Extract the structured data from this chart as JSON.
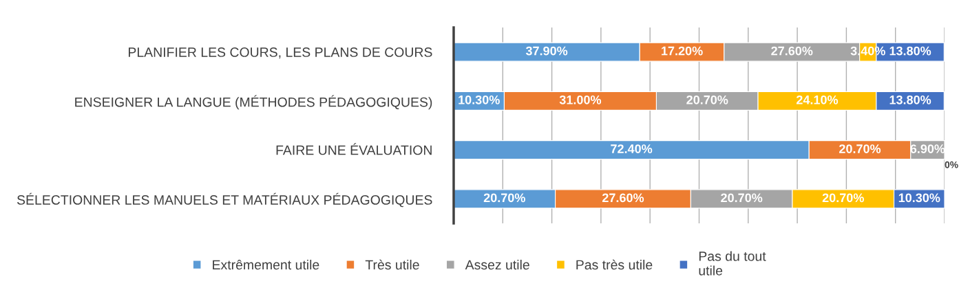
{
  "chart_data": {
    "type": "bar",
    "orientation": "horizontal",
    "stacked": true,
    "categories": [
      "PLANIFIER LES COURS, LES PLANS DE COURS",
      "ENSEIGNER LA LANGUE (MÉTHODES PÉDAGOGIQUES)",
      "FAIRE UNE ÉVALUATION",
      "SÉLECTIONNER LES MANUELS ET MATÉRIAUX PÉDAGOGIQUES"
    ],
    "series": [
      {
        "name": "Extrêmement utile",
        "color": "#5b9bd5",
        "values": [
          37.9,
          10.3,
          72.4,
          20.7
        ],
        "value_labels": [
          "37.90%",
          "10.30%",
          "72.40%",
          "20.70%"
        ]
      },
      {
        "name": "Très utile",
        "color": "#ed7d31",
        "values": [
          17.2,
          31.0,
          20.7,
          27.6
        ],
        "value_labels": [
          "17.20%",
          "31.00%",
          "20.70%",
          "27.60%"
        ]
      },
      {
        "name": "Assez utile",
        "color": "#a5a5a5",
        "values": [
          27.6,
          20.7,
          6.9,
          20.7
        ],
        "value_labels": [
          "27.60%",
          "20.70%",
          "6.90%",
          "20.70%"
        ]
      },
      {
        "name": "Pas très utile",
        "color": "#ffc000",
        "values": [
          3.4,
          24.1,
          0,
          20.7
        ],
        "value_labels": [
          "3.40%",
          "24.10%",
          "0%",
          "20.70%"
        ]
      },
      {
        "name": "Pas du tout\nutile",
        "color": "#4472c4",
        "values": [
          13.8,
          13.8,
          0,
          10.3
        ],
        "value_labels": [
          "13.80%",
          "13.80%",
          null,
          "10.30%"
        ]
      }
    ],
    "xlim": [
      0,
      100
    ],
    "xticks": [
      {
        "value": 0,
        "label": null
      },
      {
        "value": 10,
        "label": null
      },
      {
        "value": 20,
        "label": null
      },
      {
        "value": 30,
        "label": null
      },
      {
        "value": 40,
        "label": null
      },
      {
        "value": 50,
        "label": null
      },
      {
        "value": 60,
        "label": null
      },
      {
        "value": 70,
        "label": null
      },
      {
        "value": 80,
        "label": null
      },
      {
        "value": 90,
        "label": null
      },
      {
        "value": 100,
        "label": null
      }
    ],
    "tick_labels": "y",
    "grid": "x",
    "legend": "bottom"
  }
}
